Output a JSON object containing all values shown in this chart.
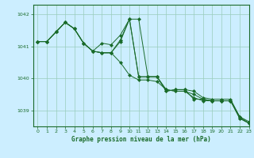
{
  "background_color": "#cceeff",
  "plot_bg_color": "#cceeff",
  "line_color": "#1a6b2a",
  "grid_color": "#99ccbb",
  "xlabel": "Graphe pression niveau de la mer (hPa)",
  "xlim": [
    -0.5,
    23
  ],
  "ylim": [
    1038.5,
    1042.3
  ],
  "yticks": [
    1039,
    1040,
    1041,
    1042
  ],
  "xticks": [
    0,
    1,
    2,
    3,
    4,
    5,
    6,
    7,
    8,
    9,
    10,
    11,
    12,
    13,
    14,
    15,
    16,
    17,
    18,
    19,
    20,
    21,
    22,
    23
  ],
  "series": [
    [
      1041.15,
      1041.15,
      1041.45,
      1041.75,
      1041.55,
      1041.1,
      1040.85,
      1040.8,
      1040.8,
      1041.2,
      1041.85,
      1041.85,
      1040.05,
      1040.05,
      1039.6,
      1039.65,
      1039.65,
      1039.6,
      1039.4,
      1039.35,
      1039.35,
      1039.35,
      1038.8,
      1038.65
    ],
    [
      1041.15,
      1041.15,
      1041.45,
      1041.75,
      1041.55,
      1041.1,
      1040.85,
      1040.8,
      1040.8,
      1040.5,
      1040.1,
      1039.95,
      1039.95,
      1039.9,
      1039.65,
      1039.6,
      1039.6,
      1039.4,
      1039.3,
      1039.3,
      1039.3,
      1039.3,
      1038.75,
      1038.6
    ],
    [
      1041.15,
      1041.15,
      1041.45,
      1041.75,
      1041.55,
      1041.1,
      1040.85,
      1041.1,
      1041.05,
      1041.35,
      1041.85,
      1040.05,
      1040.05,
      1040.05,
      1039.6,
      1039.65,
      1039.65,
      1039.35,
      1039.35,
      1039.3,
      1039.3,
      1039.3,
      1038.75,
      1038.6
    ],
    [
      1041.15,
      1041.15,
      1041.45,
      1041.75,
      1041.55,
      1041.1,
      1040.85,
      1040.8,
      1040.8,
      1041.15,
      1041.85,
      1040.05,
      1040.05,
      1040.05,
      1039.65,
      1039.6,
      1039.6,
      1039.5,
      1039.35,
      1039.3,
      1039.3,
      1039.3,
      1038.8,
      1038.6
    ]
  ]
}
